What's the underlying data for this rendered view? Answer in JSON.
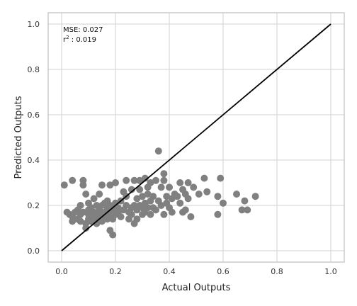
{
  "chart_data": {
    "type": "scatter",
    "title": "",
    "xlabel": "Actual Outputs",
    "ylabel": "Predicted Outputs",
    "xlim": [
      -0.05,
      1.05
    ],
    "ylim": [
      -0.05,
      1.05
    ],
    "xticks": [
      "0.0",
      "0.2",
      "0.4",
      "0.6",
      "0.8",
      "1.0"
    ],
    "yticks": [
      "0.0",
      "0.2",
      "0.4",
      "0.6",
      "0.8",
      "1.0"
    ],
    "grid": true,
    "annotation": {
      "mse_text": "MSE: 0.027",
      "r2_prefix": "r",
      "r2_sup": "2",
      "r2_text": " : 0.019"
    },
    "point_color": "#808080",
    "line_color": "#000000",
    "reference_line": {
      "x": [
        0.0,
        1.0
      ],
      "y": [
        0.0,
        1.0
      ]
    },
    "points": [
      [
        0.01,
        0.29
      ],
      [
        0.02,
        0.17
      ],
      [
        0.03,
        0.16
      ],
      [
        0.04,
        0.15
      ],
      [
        0.04,
        0.13
      ],
      [
        0.04,
        0.31
      ],
      [
        0.05,
        0.17
      ],
      [
        0.06,
        0.18
      ],
      [
        0.06,
        0.14
      ],
      [
        0.07,
        0.16
      ],
      [
        0.07,
        0.13
      ],
      [
        0.07,
        0.2
      ],
      [
        0.08,
        0.17
      ],
      [
        0.08,
        0.31
      ],
      [
        0.08,
        0.29
      ],
      [
        0.09,
        0.12
      ],
      [
        0.09,
        0.25
      ],
      [
        0.09,
        0.1
      ],
      [
        0.1,
        0.16
      ],
      [
        0.1,
        0.18
      ],
      [
        0.1,
        0.14
      ],
      [
        0.1,
        0.21
      ],
      [
        0.11,
        0.13
      ],
      [
        0.11,
        0.16
      ],
      [
        0.11,
        0.19
      ],
      [
        0.12,
        0.17
      ],
      [
        0.12,
        0.23
      ],
      [
        0.12,
        0.14
      ],
      [
        0.13,
        0.2
      ],
      [
        0.13,
        0.15
      ],
      [
        0.13,
        0.12
      ],
      [
        0.14,
        0.16
      ],
      [
        0.14,
        0.18
      ],
      [
        0.14,
        0.25
      ],
      [
        0.15,
        0.13
      ],
      [
        0.15,
        0.2
      ],
      [
        0.15,
        0.29
      ],
      [
        0.16,
        0.15
      ],
      [
        0.16,
        0.17
      ],
      [
        0.16,
        0.21
      ],
      [
        0.17,
        0.14
      ],
      [
        0.17,
        0.19
      ],
      [
        0.17,
        0.22
      ],
      [
        0.18,
        0.09
      ],
      [
        0.18,
        0.16
      ],
      [
        0.18,
        0.2
      ],
      [
        0.18,
        0.29
      ],
      [
        0.19,
        0.07
      ],
      [
        0.19,
        0.18
      ],
      [
        0.19,
        0.14
      ],
      [
        0.2,
        0.16
      ],
      [
        0.2,
        0.21
      ],
      [
        0.2,
        0.3
      ],
      [
        0.21,
        0.17
      ],
      [
        0.21,
        0.19
      ],
      [
        0.22,
        0.22
      ],
      [
        0.22,
        0.15
      ],
      [
        0.23,
        0.18
      ],
      [
        0.23,
        0.26
      ],
      [
        0.24,
        0.2
      ],
      [
        0.24,
        0.24
      ],
      [
        0.24,
        0.31
      ],
      [
        0.25,
        0.17
      ],
      [
        0.25,
        0.14
      ],
      [
        0.26,
        0.19
      ],
      [
        0.26,
        0.27
      ],
      [
        0.26,
        0.16
      ],
      [
        0.27,
        0.2
      ],
      [
        0.27,
        0.31
      ],
      [
        0.27,
        0.12
      ],
      [
        0.28,
        0.23
      ],
      [
        0.28,
        0.18
      ],
      [
        0.28,
        0.14
      ],
      [
        0.29,
        0.2
      ],
      [
        0.29,
        0.27
      ],
      [
        0.29,
        0.31
      ],
      [
        0.3,
        0.16
      ],
      [
        0.3,
        0.19
      ],
      [
        0.3,
        0.24
      ],
      [
        0.31,
        0.21
      ],
      [
        0.31,
        0.32
      ],
      [
        0.31,
        0.17
      ],
      [
        0.32,
        0.19
      ],
      [
        0.32,
        0.25
      ],
      [
        0.32,
        0.28
      ],
      [
        0.33,
        0.22
      ],
      [
        0.33,
        0.16
      ],
      [
        0.33,
        0.3
      ],
      [
        0.34,
        0.19
      ],
      [
        0.34,
        0.24
      ],
      [
        0.35,
        0.31
      ],
      [
        0.35,
        0.18
      ],
      [
        0.36,
        0.44
      ],
      [
        0.36,
        0.22
      ],
      [
        0.37,
        0.2
      ],
      [
        0.37,
        0.28
      ],
      [
        0.38,
        0.16
      ],
      [
        0.38,
        0.34
      ],
      [
        0.38,
        0.31
      ],
      [
        0.39,
        0.24
      ],
      [
        0.39,
        0.21
      ],
      [
        0.4,
        0.28
      ],
      [
        0.4,
        0.19
      ],
      [
        0.41,
        0.17
      ],
      [
        0.41,
        0.23
      ],
      [
        0.42,
        0.25
      ],
      [
        0.43,
        0.24
      ],
      [
        0.44,
        0.3
      ],
      [
        0.44,
        0.21
      ],
      [
        0.45,
        0.17
      ],
      [
        0.45,
        0.27
      ],
      [
        0.46,
        0.25
      ],
      [
        0.46,
        0.18
      ],
      [
        0.47,
        0.3
      ],
      [
        0.47,
        0.23
      ],
      [
        0.48,
        0.15
      ],
      [
        0.49,
        0.28
      ],
      [
        0.51,
        0.25
      ],
      [
        0.53,
        0.32
      ],
      [
        0.54,
        0.26
      ],
      [
        0.58,
        0.16
      ],
      [
        0.58,
        0.24
      ],
      [
        0.59,
        0.32
      ],
      [
        0.6,
        0.21
      ],
      [
        0.65,
        0.25
      ],
      [
        0.67,
        0.18
      ],
      [
        0.68,
        0.22
      ],
      [
        0.69,
        0.18
      ],
      [
        0.72,
        0.24
      ]
    ]
  }
}
